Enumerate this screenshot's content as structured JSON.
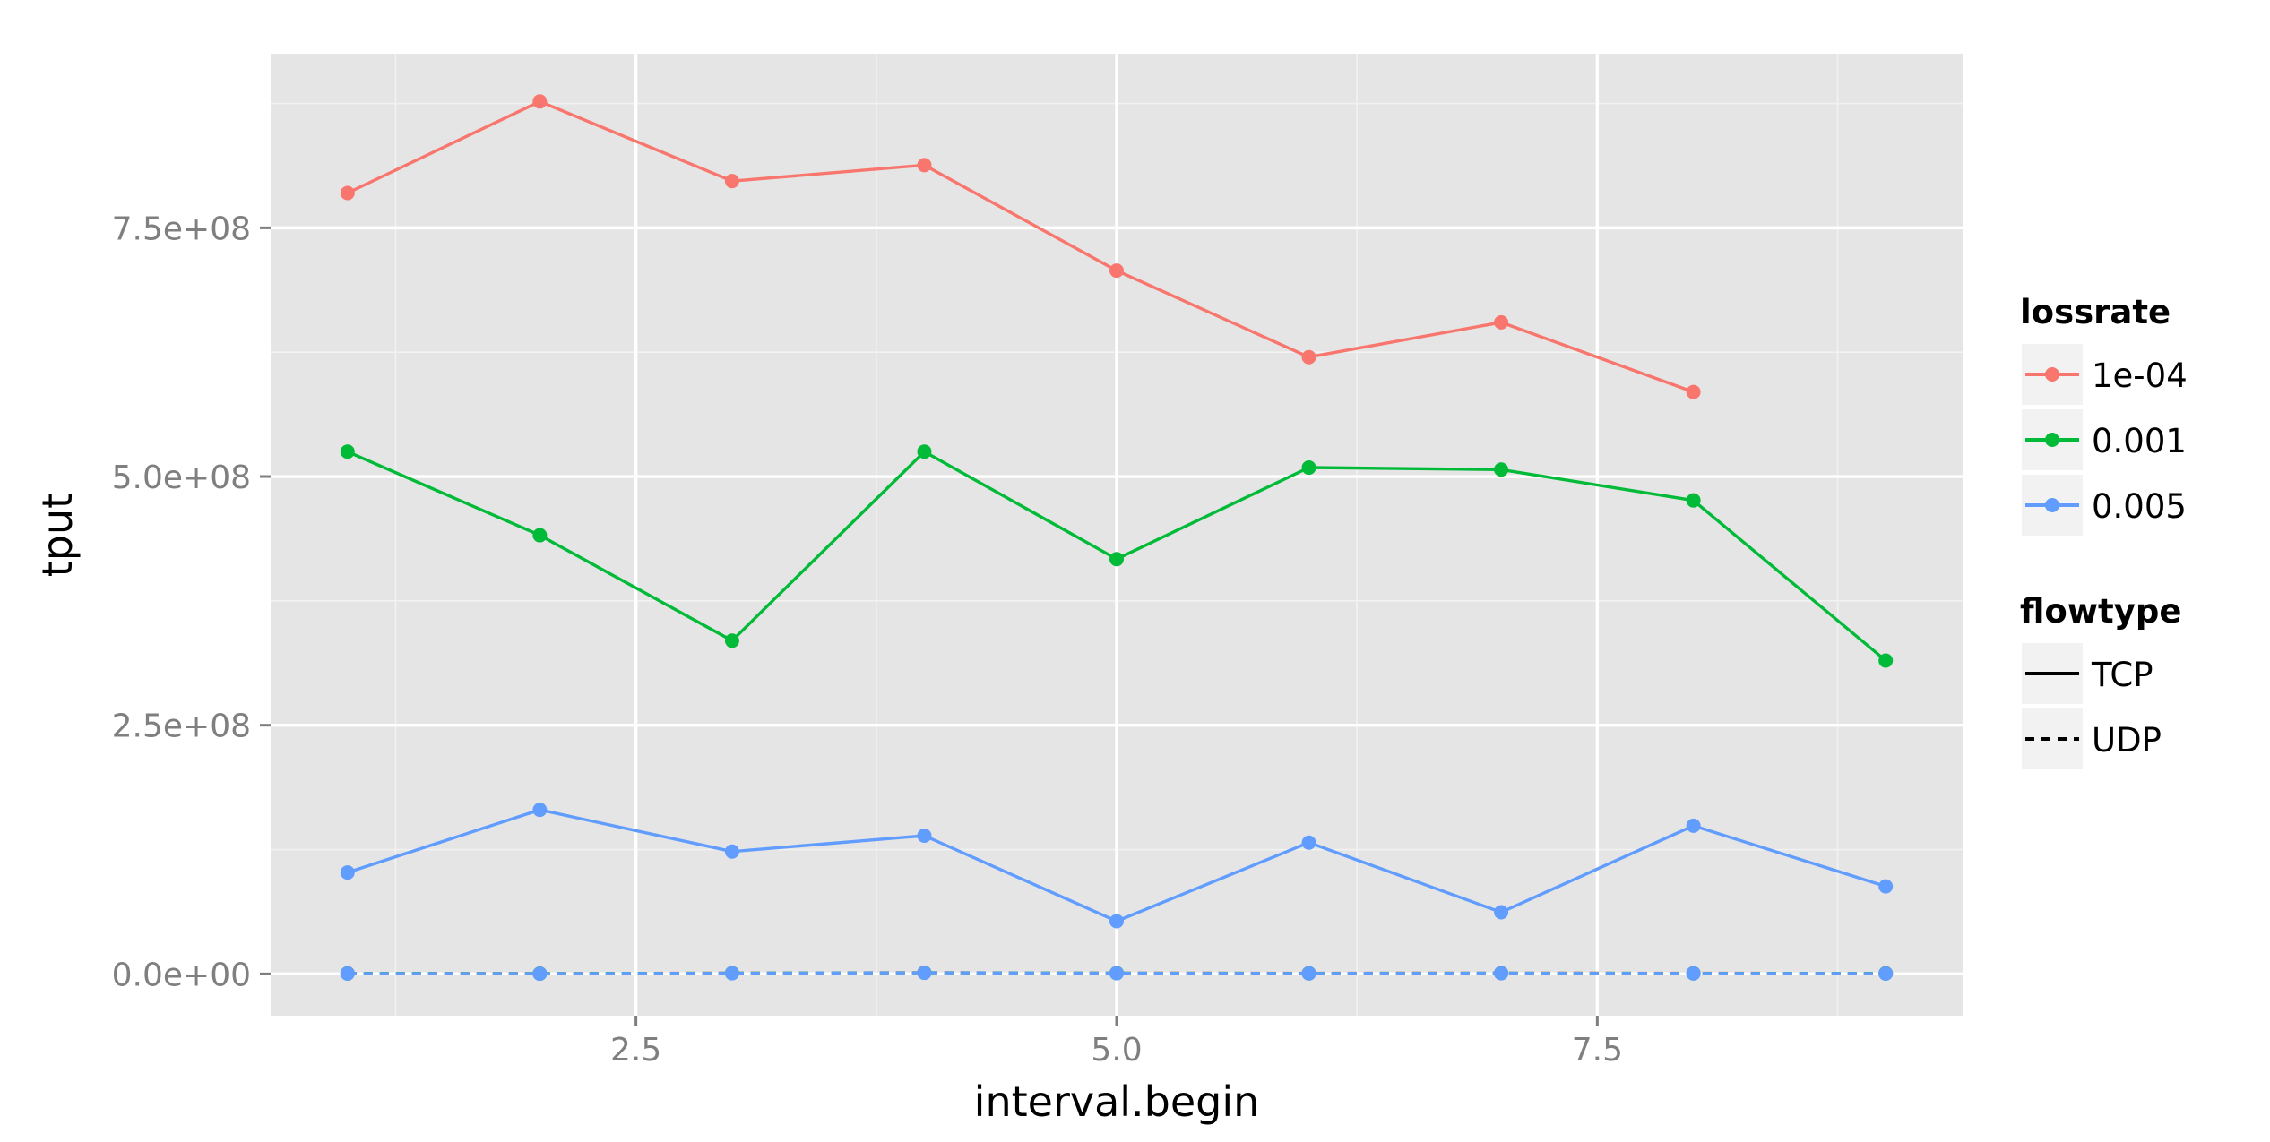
{
  "chart_data": {
    "type": "line",
    "title": "",
    "xlabel": "interval.begin",
    "ylabel": "tput",
    "xlim": [
      0.6,
      9.4
    ],
    "ylim": [
      -42000000,
      925000000
    ],
    "x_ticks": [
      2.5,
      5.0,
      7.5
    ],
    "x_tick_labels": [
      "2.5",
      "5.0",
      "7.5"
    ],
    "y_ticks": [
      0,
      250000000,
      500000000,
      750000000
    ],
    "y_tick_labels": [
      "0.0e+00",
      "2.5e+08",
      "5.0e+08",
      "7.5e+08"
    ],
    "grid": true,
    "legend_placement": "right",
    "legends": [
      {
        "title": "lossrate",
        "entries": [
          {
            "label": "1e-04",
            "color": "#F8766D"
          },
          {
            "label": "0.001",
            "color": "#00BA38"
          },
          {
            "label": "0.005",
            "color": "#619CFF"
          }
        ]
      },
      {
        "title": "flowtype",
        "entries": [
          {
            "label": "TCP",
            "dash": "solid"
          },
          {
            "label": "UDP",
            "dash": "dashed"
          }
        ]
      }
    ],
    "series": [
      {
        "lossrate": "1e-04",
        "flowtype": "TCP",
        "color": "#F8766D",
        "dash": "solid",
        "x": [
          1,
          2,
          3,
          4,
          5,
          6,
          7,
          8
        ],
        "values": [
          785000000,
          877000000,
          797000000,
          813000000,
          707000000,
          620000000,
          655000000,
          585000000
        ]
      },
      {
        "lossrate": "0.001",
        "flowtype": "TCP",
        "color": "#00BA38",
        "dash": "solid",
        "x": [
          1,
          2,
          3,
          4,
          5,
          6,
          7,
          8,
          9
        ],
        "values": [
          525000000,
          441000000,
          335000000,
          525000000,
          417000000,
          509000000,
          507000000,
          476000000,
          315000000
        ]
      },
      {
        "lossrate": "0.005",
        "flowtype": "TCP",
        "color": "#619CFF",
        "dash": "solid",
        "x": [
          1,
          2,
          3,
          4,
          5,
          6,
          7,
          8,
          9
        ],
        "values": [
          102000000,
          165000000,
          123000000,
          139000000,
          53000000,
          132000000,
          62000000,
          149000000,
          88000000
        ]
      },
      {
        "lossrate": "1e-04",
        "flowtype": "UDP",
        "color": "#F8766D",
        "dash": "dashed",
        "x": [
          1,
          2,
          3,
          4,
          5,
          6,
          7,
          8,
          9
        ],
        "values": [
          600000,
          300000,
          900000,
          1300000,
          900000,
          700000,
          900000,
          700000,
          600000
        ]
      },
      {
        "lossrate": "0.001",
        "flowtype": "UDP",
        "color": "#00BA38",
        "dash": "dashed",
        "x": [
          1,
          2,
          3,
          4,
          5,
          6,
          7,
          8,
          9
        ],
        "values": [
          500000,
          300000,
          800000,
          1200000,
          800000,
          600000,
          800000,
          600000,
          500000
        ]
      },
      {
        "lossrate": "0.005",
        "flowtype": "UDP",
        "color": "#619CFF",
        "dash": "dashed",
        "x": [
          1,
          2,
          3,
          4,
          5,
          6,
          7,
          8,
          9
        ],
        "values": [
          400000,
          200000,
          700000,
          1100000,
          700000,
          500000,
          700000,
          500000,
          400000
        ]
      }
    ]
  }
}
